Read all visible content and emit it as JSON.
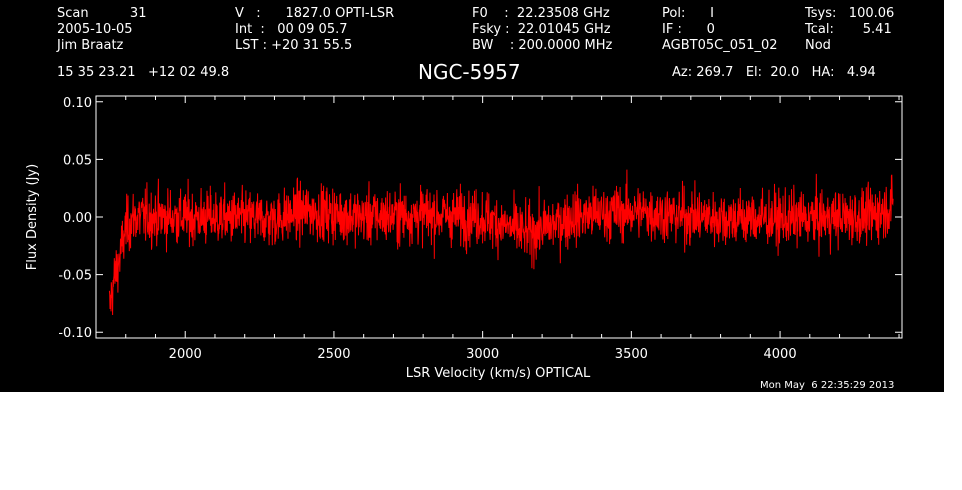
{
  "header": {
    "col1": [
      "Scan          31",
      "2005-10-05",
      "Jim Braatz"
    ],
    "col2": [
      "V   :      1827.0 OPTI-LSR",
      "Int  :   00 09 05.7",
      "LST : +20 31 55.5"
    ],
    "col3": [
      "F0    :  22.23508 GHz",
      "Fsky :  22.01045 GHz",
      "BW    : 200.0000 MHz"
    ],
    "col4": [
      "Pol:      I",
      "IF :      0",
      "AGBT05C_051_02"
    ],
    "col5": [
      "",
      "",
      "Nod"
    ],
    "col6": [
      "Tsys:   100.06",
      "Tcal:       5.41",
      ""
    ],
    "coords": "15 35 23.21   +12 02 49.8",
    "source": "NGC-5957",
    "pointing": "Az: 269.7   El:  20.0   HA:   4.94"
  },
  "timestamp": "Mon May  6 22:35:29 2013",
  "colors": {
    "background": "#000000",
    "axes": "#ffffff",
    "series": "#ff0000"
  },
  "chart_data": {
    "type": "line",
    "xlabel": "LSR Velocity (km/s) OPTICAL",
    "ylabel": "Flux Density (Jy)",
    "xlim": [
      1700,
      4410
    ],
    "ylim": [
      -0.105,
      0.105
    ],
    "xticks": [
      2000,
      2500,
      3000,
      3500,
      4000
    ],
    "xtick_labels": [
      "2000",
      "2500",
      "3000",
      "3500",
      "4000"
    ],
    "yticks": [
      -0.1,
      -0.05,
      0.0,
      0.05,
      0.1
    ],
    "ytick_labels": [
      "-0.10",
      "-0.05",
      "0.00",
      "0.05",
      "0.10"
    ],
    "series": [
      {
        "x_start": 1745,
        "x_end": 4380,
        "noise_rms": 0.012,
        "baseline": [
          [
            1745,
            -0.08
          ],
          [
            1760,
            -0.055
          ],
          [
            1780,
            -0.035
          ],
          [
            1800,
            -0.01
          ],
          [
            1830,
            0.0
          ],
          [
            2000,
            0.0
          ],
          [
            2300,
            -0.002
          ],
          [
            2400,
            0.005
          ],
          [
            2600,
            0.0
          ],
          [
            2800,
            0.002
          ],
          [
            3000,
            0.0
          ],
          [
            3150,
            -0.015
          ],
          [
            3300,
            0.0
          ],
          [
            3500,
            0.005
          ],
          [
            3700,
            0.0
          ],
          [
            4000,
            -0.002
          ],
          [
            4300,
            0.0
          ],
          [
            4380,
            0.01
          ]
        ]
      }
    ],
    "grid": false,
    "legend": "none"
  }
}
